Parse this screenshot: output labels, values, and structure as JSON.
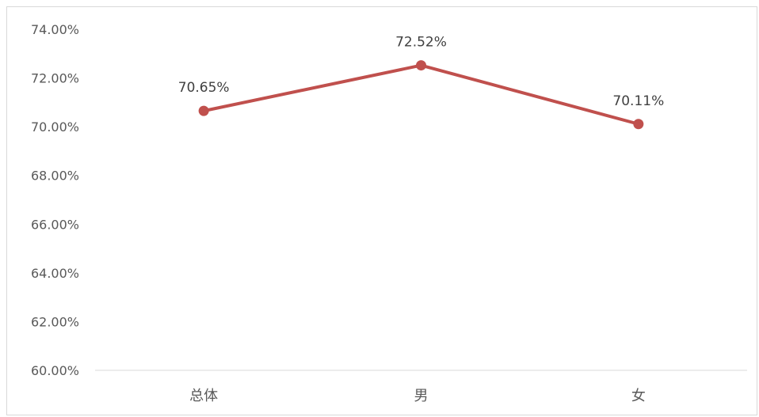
{
  "chart_data": {
    "type": "line",
    "categories": [
      "总体",
      "男",
      "女"
    ],
    "series": [
      {
        "values": [
          70.65,
          72.52,
          70.11
        ],
        "color": "#c0504d"
      }
    ],
    "data_labels": [
      "70.65%",
      "72.52%",
      "70.11%"
    ],
    "ylim": [
      60,
      74
    ],
    "yticks": [
      60,
      62,
      64,
      66,
      68,
      70,
      72,
      74
    ],
    "ytick_labels": [
      "60.00%",
      "62.00%",
      "64.00%",
      "66.00%",
      "68.00%",
      "70.00%",
      "72.00%",
      "74.00%"
    ],
    "grid": false,
    "legend": "none"
  }
}
